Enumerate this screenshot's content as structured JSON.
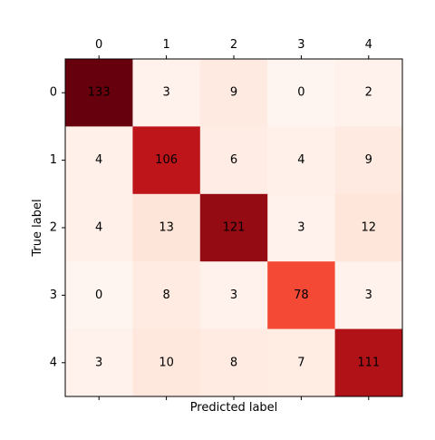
{
  "chart_data": {
    "type": "heatmap",
    "title": "",
    "xlabel": "Predicted label",
    "ylabel": "True label",
    "x_tick_position": "top",
    "y_tick_position": "left",
    "x_categories": [
      "0",
      "1",
      "2",
      "3",
      "4"
    ],
    "y_categories": [
      "0",
      "1",
      "2",
      "3",
      "4"
    ],
    "values": [
      [
        133,
        3,
        9,
        0,
        2
      ],
      [
        4,
        106,
        6,
        4,
        9
      ],
      [
        4,
        13,
        121,
        3,
        12
      ],
      [
        0,
        8,
        3,
        78,
        3
      ],
      [
        3,
        10,
        8,
        7,
        111
      ]
    ],
    "colormap": "Reds",
    "grid": false,
    "legend": "none"
  }
}
